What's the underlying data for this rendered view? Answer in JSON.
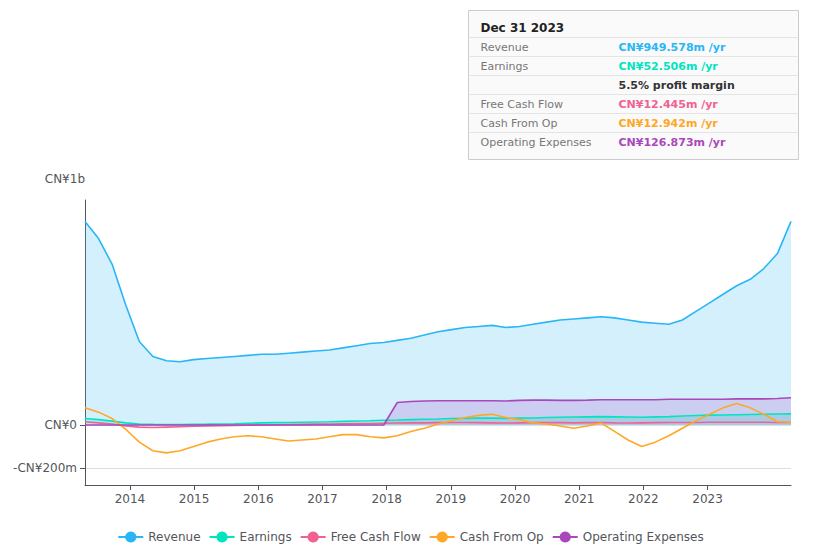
{
  "chart_data": {
    "type": "line",
    "ylabel": "CN¥1b",
    "x": [
      2013.3,
      2013.511538,
      2013.723077,
      2013.934615,
      2014.146154,
      2014.357692,
      2014.569231,
      2014.780769,
      2014.992308,
      2015.203846,
      2015.415385,
      2015.626923,
      2015.838462,
      2016.05,
      2016.261538,
      2016.473077,
      2016.684615,
      2016.896154,
      2017.107692,
      2017.319231,
      2017.530769,
      2017.742308,
      2017.953846,
      2018.165385,
      2018.376923,
      2018.588462,
      2018.8,
      2019.011538,
      2019.223077,
      2019.434615,
      2019.646154,
      2019.857692,
      2020.069231,
      2020.280769,
      2020.492308,
      2020.703846,
      2020.915385,
      2021.126923,
      2021.338462,
      2021.55,
      2021.761538,
      2021.973077,
      2022.184615,
      2022.396154,
      2022.607692,
      2022.819231,
      2023.030769,
      2023.242308,
      2023.453846,
      2023.665385,
      2023.876923,
      2024.088462,
      2024.3
    ],
    "series": [
      {
        "name": "Revenue",
        "type": "area",
        "color": "#29b6f6",
        "values": [
          950,
          870,
          750,
          560,
          390,
          320,
          300,
          295,
          305,
          310,
          315,
          320,
          325,
          330,
          330,
          335,
          340,
          345,
          350,
          360,
          370,
          380,
          385,
          395,
          405,
          420,
          435,
          445,
          455,
          460,
          465,
          455,
          460,
          470,
          480,
          490,
          495,
          500,
          505,
          500,
          490,
          480,
          475,
          470,
          490,
          530,
          570,
          610,
          650,
          680,
          730,
          800,
          950
        ]
      },
      {
        "name": "Earnings",
        "type": "area",
        "color": "#00e5c0",
        "values": [
          30,
          25,
          18,
          10,
          5,
          3,
          2,
          2,
          3,
          4,
          5,
          6,
          8,
          10,
          11,
          12,
          13,
          14,
          15,
          17,
          19,
          20,
          22,
          23,
          25,
          27,
          28,
          30,
          31,
          32,
          32,
          31,
          32,
          33,
          35,
          36,
          37,
          38,
          39,
          38,
          37,
          36,
          38,
          39,
          42,
          44,
          46,
          47,
          48,
          49,
          50,
          51,
          52
        ]
      },
      {
        "name": "Free Cash Flow",
        "type": "line",
        "color": "#f06292",
        "values": [
          15,
          10,
          5,
          -5,
          -10,
          -12,
          -10,
          -8,
          -6,
          -4,
          -3,
          -2,
          -1,
          0,
          1,
          2,
          3,
          4,
          5,
          6,
          7,
          7,
          8,
          9,
          10,
          10,
          11,
          12,
          12,
          11,
          10,
          9,
          10,
          11,
          12,
          11,
          10,
          11,
          12,
          10,
          9,
          10,
          11,
          12,
          12,
          12,
          13,
          13,
          13,
          13,
          13,
          12,
          12
        ]
      },
      {
        "name": "Cash From Op",
        "type": "line",
        "color": "#ffa726",
        "values": [
          80,
          60,
          30,
          -20,
          -80,
          -120,
          -130,
          -120,
          -100,
          -80,
          -65,
          -55,
          -50,
          -55,
          -65,
          -75,
          -70,
          -65,
          -55,
          -45,
          -45,
          -55,
          -60,
          -50,
          -30,
          -15,
          5,
          20,
          35,
          45,
          50,
          35,
          25,
          10,
          5,
          -5,
          -15,
          -5,
          10,
          -30,
          -70,
          -100,
          -80,
          -50,
          -15,
          20,
          50,
          80,
          100,
          80,
          50,
          15,
          13
        ]
      },
      {
        "name": "Operating Expenses",
        "type": "area",
        "color": "#ab47bc",
        "values": [
          0,
          0,
          0,
          0,
          0,
          0,
          0,
          0,
          0,
          0,
          0,
          0,
          0,
          0,
          0,
          0,
          0,
          0,
          0,
          0,
          0,
          0,
          0,
          105,
          110,
          112,
          113,
          113,
          113,
          113,
          113,
          112,
          115,
          116,
          116,
          115,
          115,
          116,
          118,
          118,
          118,
          118,
          118,
          120,
          120,
          120,
          120,
          120,
          122,
          122,
          122,
          124,
          127
        ]
      }
    ],
    "xlim": [
      2013.3,
      2024.3
    ],
    "xticks": [
      2014,
      2015,
      2016,
      2017,
      2018,
      2019,
      2020,
      2021,
      2022,
      2023
    ],
    "ylim": [
      -280,
      1050
    ],
    "yticks": [
      {
        "value": 0,
        "label": "CN¥0"
      },
      {
        "value": -200,
        "label": "-CN¥200m"
      }
    ],
    "grid": true,
    "legend": "bottom",
    "annotations": [
      "Dec 31 2023",
      {
        "label": "Revenue",
        "value": "CN¥949.578m /yr",
        "color": "#29b6f6"
      },
      {
        "label": "Earnings",
        "value": "CN¥52.506m /yr",
        "color": "#00e5c0"
      },
      {
        "value": "5.5% profit margin"
      },
      {
        "label": "Free Cash Flow",
        "value": "CN¥12.445m /yr",
        "color": "#f06292"
      },
      {
        "label": "Cash From Op",
        "value": "CN¥12.942m /yr",
        "color": "#ffa726"
      },
      {
        "label": "Operating Expenses",
        "value": "CN¥126.873m /yr",
        "color": "#ab47bc"
      }
    ]
  }
}
